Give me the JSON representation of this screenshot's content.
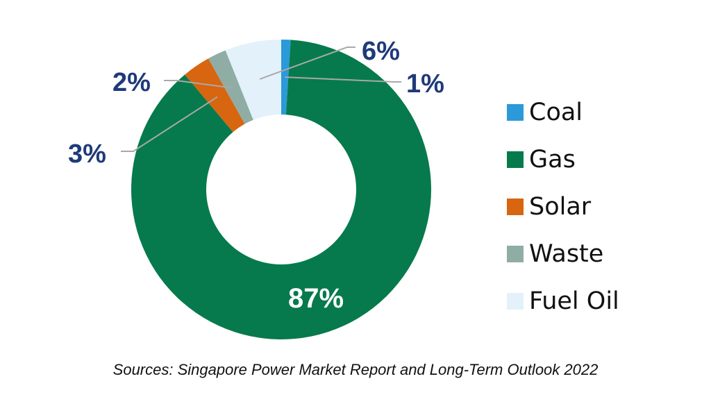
{
  "chart_data": {
    "type": "pie",
    "subtype": "donut",
    "categories": [
      "Coal",
      "Gas",
      "Solar",
      "Waste",
      "Fuel Oil"
    ],
    "values": [
      1,
      87,
      3,
      2,
      6
    ],
    "labels": [
      "1%",
      "87%",
      "3%",
      "2%",
      "6%"
    ],
    "colors": [
      "#2a9ad8",
      "#067a4c",
      "#d8650f",
      "#8fada5",
      "#e3f1fb"
    ],
    "legend_position": "right",
    "source": "Sources: Singapore Power Market Report and Long-Term Outlook 2022"
  }
}
